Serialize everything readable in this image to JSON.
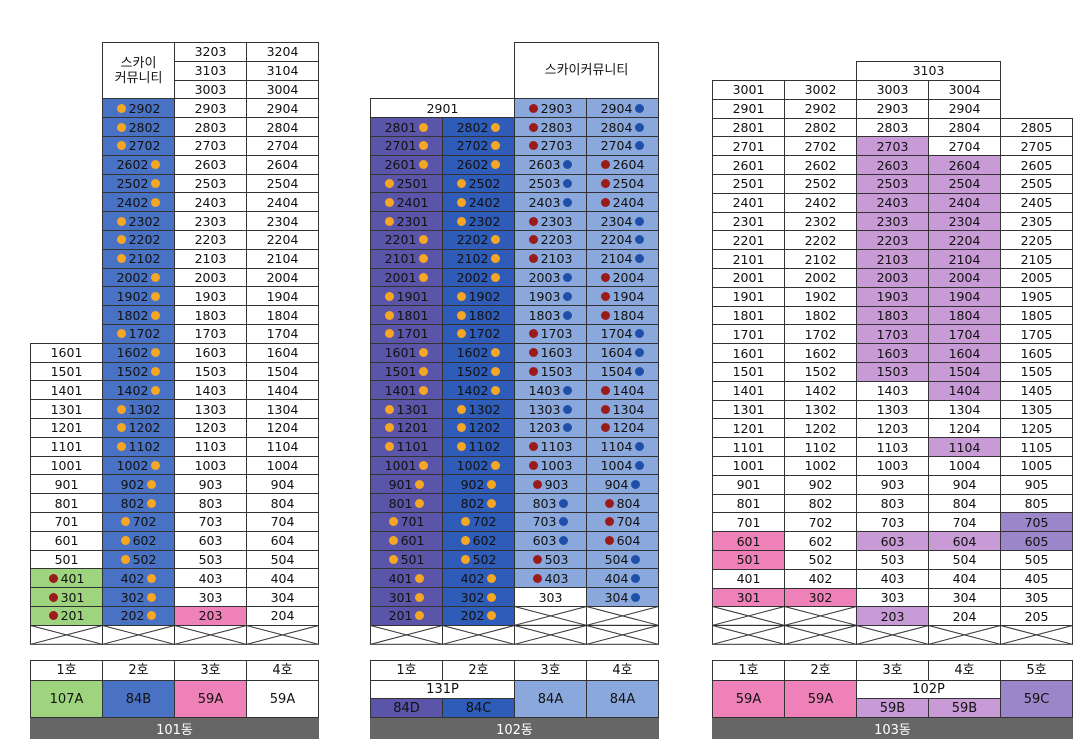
{
  "colors": {
    "blue": "#4a72c4",
    "lightblue": "#8aa8dc",
    "navy": "#5a55a8",
    "darkblue": "#2f5cb8",
    "pink": "#ee82b8",
    "violet": "#c89ad6",
    "purple": "#9b86c9",
    "green": "#9fd47f",
    "white": "#ffffff"
  },
  "buildings": [
    {
      "name": "101동",
      "columns": [
        {
          "label": "1호",
          "type": "107A",
          "color": "green"
        },
        {
          "label": "2호",
          "type": "84B",
          "color": "blue"
        },
        {
          "label": "3호",
          "type": "59A",
          "color": "pink"
        },
        {
          "label": "4호",
          "type": "59A",
          "color": "white"
        }
      ],
      "community_label": "스카이\n커뮤니티"
    },
    {
      "name": "102동",
      "columns": [
        {
          "label": "1호",
          "type": "84D",
          "color": "navy"
        },
        {
          "label": "2호",
          "type": "84C",
          "color": "darkblue"
        },
        {
          "label": "3호",
          "type": "84A",
          "color": "lightblue"
        },
        {
          "label": "4호",
          "type": "84A",
          "color": "lightblue"
        }
      ],
      "merged_label": "131P",
      "community_label": "스카이커뮤니티",
      "top_unit": "2901"
    },
    {
      "name": "103동",
      "columns": [
        {
          "label": "1호",
          "type": "59A",
          "color": "pink"
        },
        {
          "label": "2호",
          "type": "59A",
          "color": "pink"
        },
        {
          "label": "3호",
          "type": "59B",
          "color": "violet"
        },
        {
          "label": "4호",
          "type": "59B",
          "color": "violet"
        },
        {
          "label": "5호",
          "type": "59C",
          "color": "purple"
        }
      ],
      "merged_label": "102P",
      "top_unit": "3103"
    }
  ]
}
